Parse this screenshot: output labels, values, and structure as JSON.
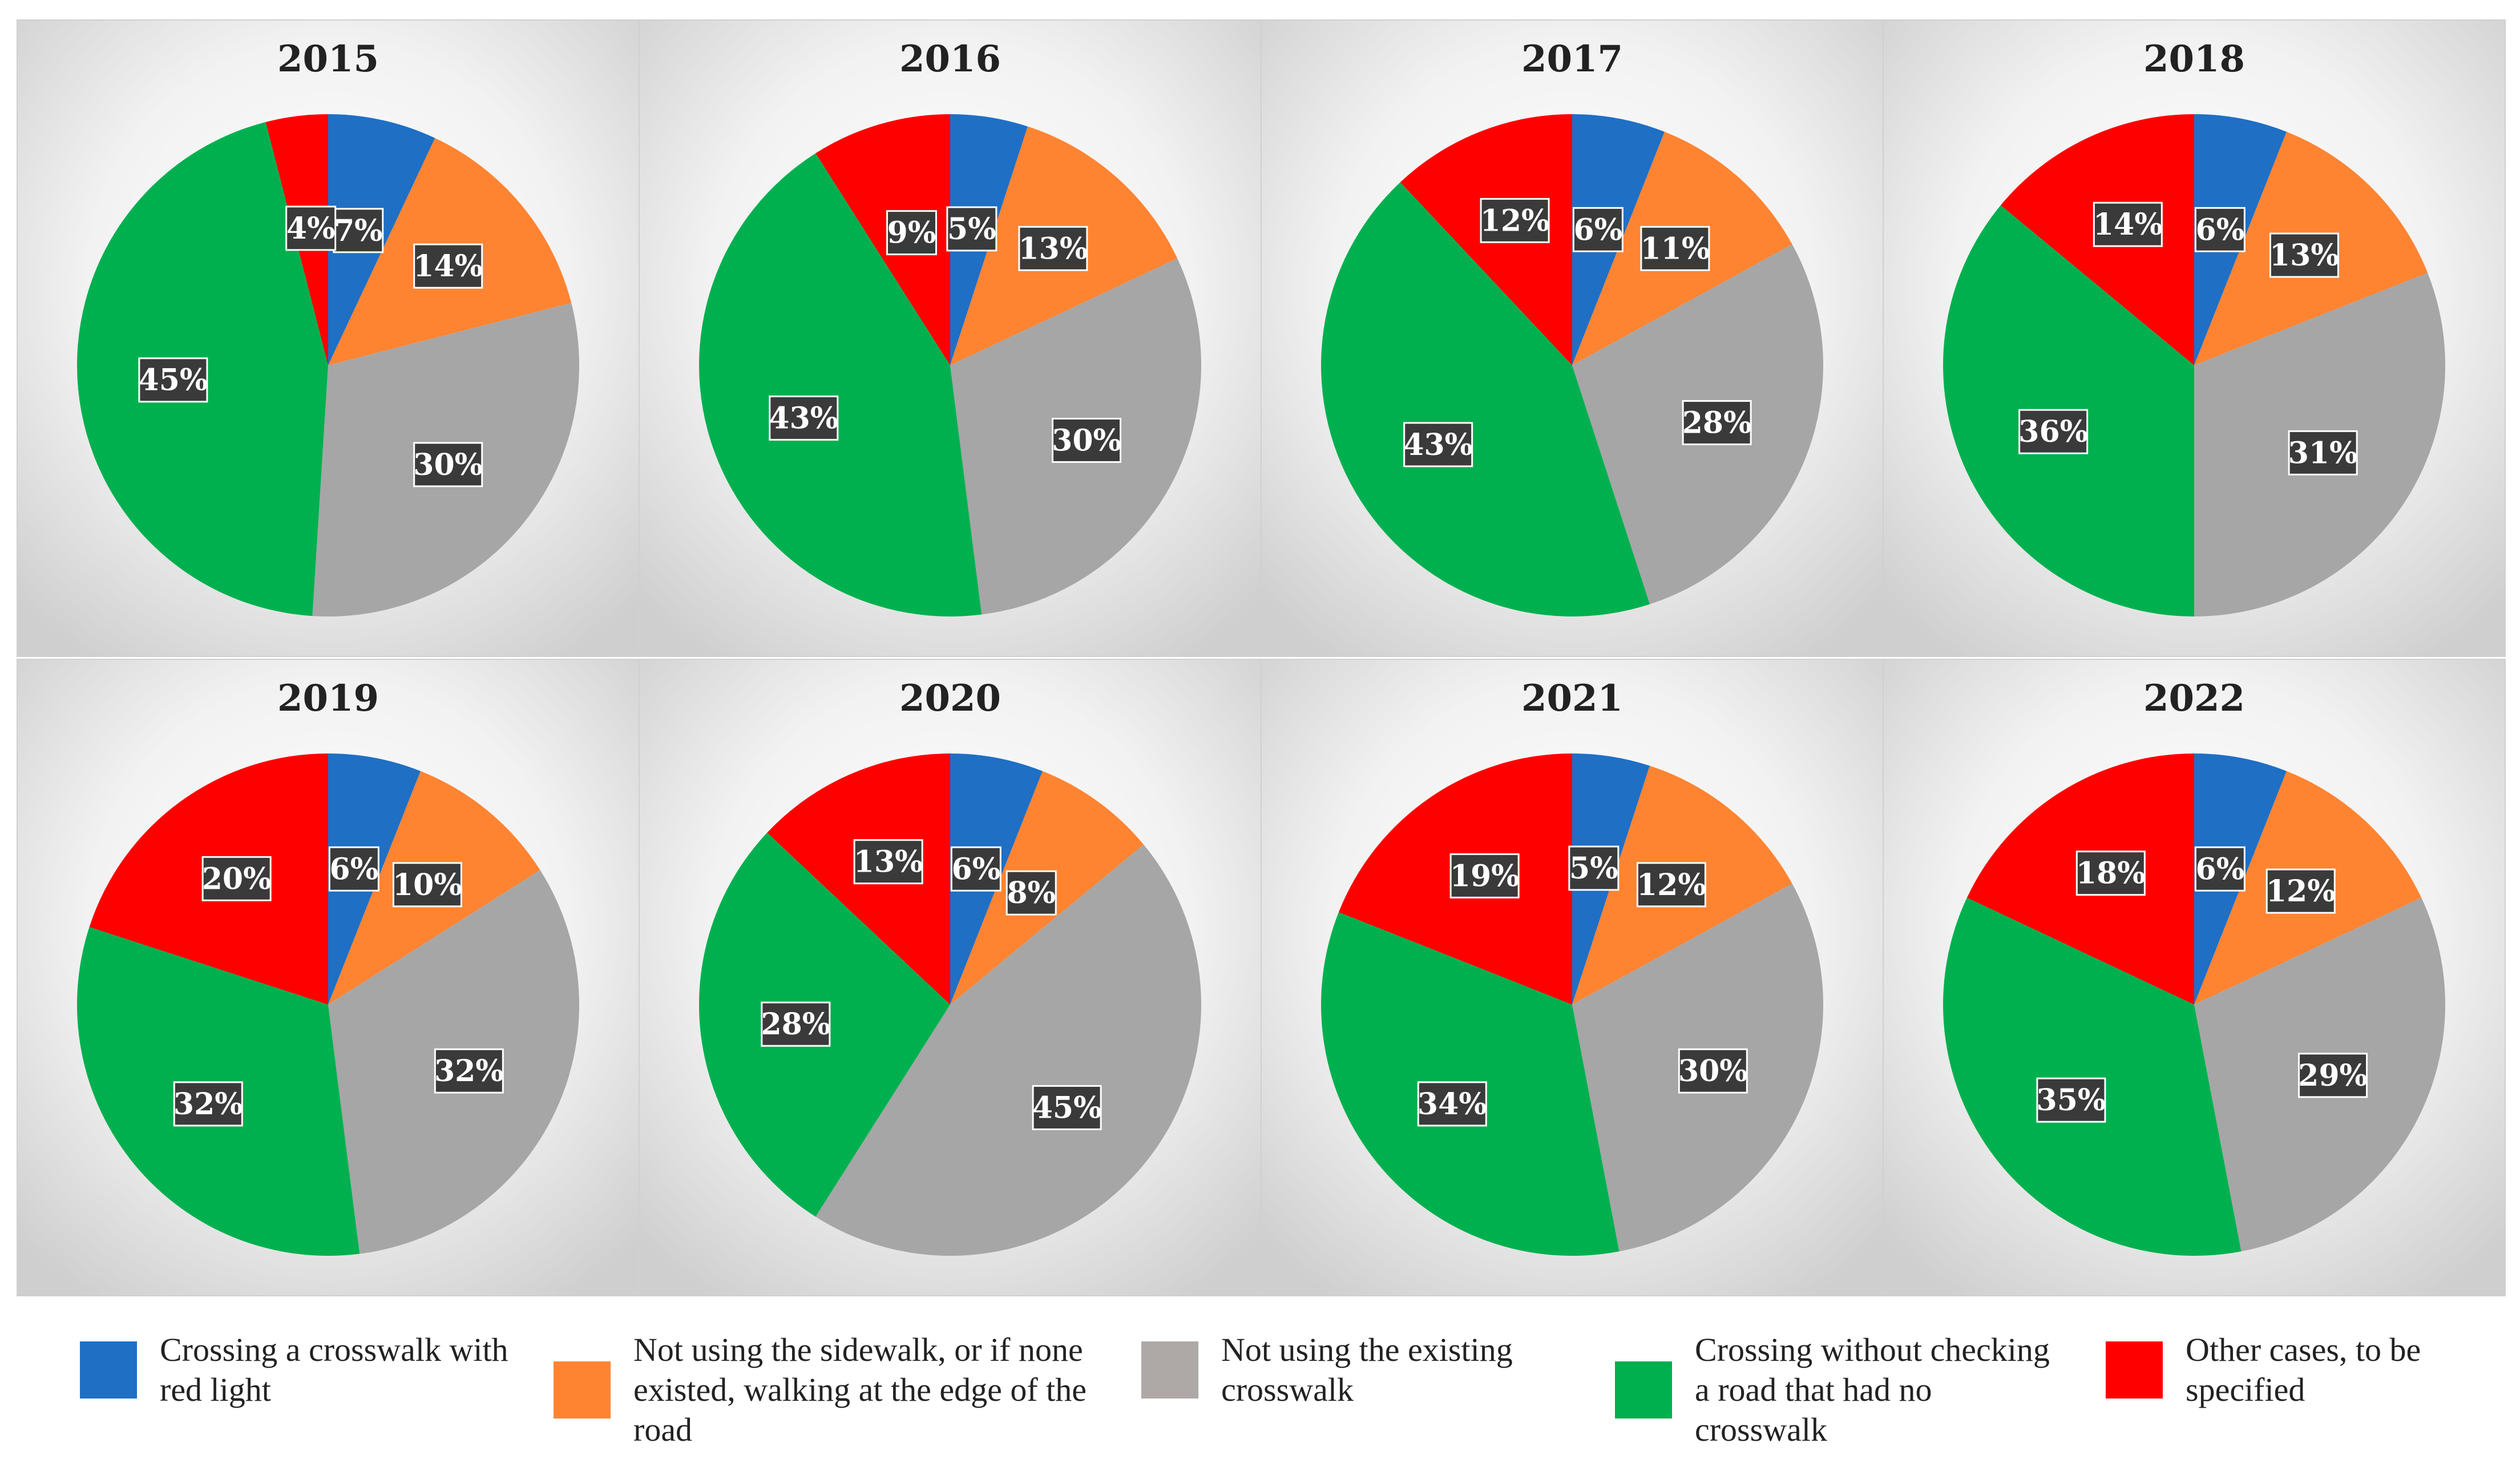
{
  "chart_data": {
    "type": "pie",
    "categories": [
      "Crossing a crosswalk with red light",
      "Not using the sidewalk, or if none existed, walking at the edge of the road",
      "Not using the existing crosswalk",
      "Crossing without checking a road that had no crosswalk",
      "Other cases, to be specified"
    ],
    "colors": [
      "#1f6fc5",
      "#ff8432",
      "#a6a6a6",
      "#00b04f",
      "#ff0000"
    ],
    "charts": [
      {
        "title": "2015",
        "values": [
          7,
          14,
          30,
          45,
          4
        ]
      },
      {
        "title": "2016",
        "values": [
          5,
          13,
          30,
          43,
          9
        ]
      },
      {
        "title": "2017",
        "values": [
          6,
          11,
          28,
          43,
          12
        ]
      },
      {
        "title": "2018",
        "values": [
          6,
          13,
          31,
          36,
          14
        ]
      },
      {
        "title": "2019",
        "values": [
          6,
          10,
          32,
          32,
          20
        ]
      },
      {
        "title": "2020",
        "values": [
          6,
          8,
          45,
          28,
          13
        ]
      },
      {
        "title": "2021",
        "values": [
          5,
          12,
          30,
          34,
          19
        ]
      },
      {
        "title": "2022",
        "values": [
          6,
          12,
          29,
          35,
          18
        ]
      }
    ],
    "value_suffix": "%",
    "legend_position": "bottom"
  },
  "legend": {
    "items": [
      {
        "label": "Crossing a crosswalk with red light",
        "color": "#1f6fc5"
      },
      {
        "label": "Not using the sidewalk, or if none existed, walking at the edge of the road",
        "color": "#ff8432"
      },
      {
        "label": "Not using the existing crosswalk",
        "color": "#aea8a6"
      },
      {
        "label": "Crossing without checking a road that had no crosswalk",
        "color": "#00b04f"
      },
      {
        "label": "Other cases, to be specified",
        "color": "#ff0000"
      }
    ]
  }
}
